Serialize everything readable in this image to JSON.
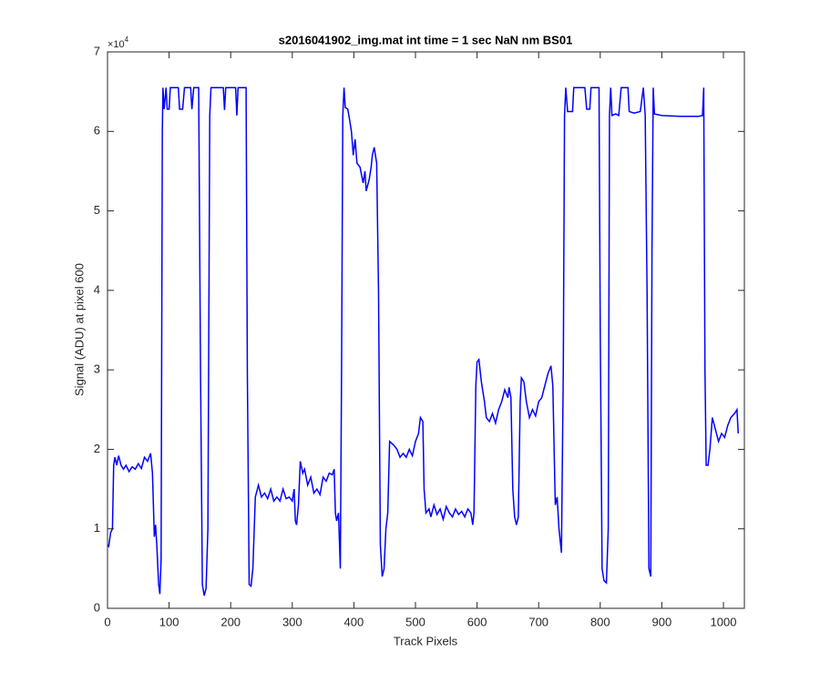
{
  "chart_data": {
    "type": "line",
    "title": "s2016041902_img.mat int time = 1 sec  NaN nm BS01",
    "x_label": "Track Pixels",
    "y_label": "Signal (ADU) at pixel 600",
    "y_multiplier": {
      "base": "×10",
      "exponent": "4"
    },
    "color": "#0000ff",
    "xlim": [
      0,
      1034
    ],
    "ylim": [
      0,
      70000
    ],
    "xticks": [
      0,
      100,
      200,
      300,
      400,
      500,
      600,
      700,
      800,
      900,
      1000
    ],
    "yticks": [
      0,
      {
        "value": 10000,
        "label": "1"
      },
      {
        "value": 20000,
        "label": "2"
      },
      {
        "value": 30000,
        "label": "3"
      },
      {
        "value": 40000,
        "label": "4"
      },
      {
        "value": 50000,
        "label": "5"
      },
      {
        "value": 60000,
        "label": "6"
      },
      {
        "value": 70000,
        "label": "7"
      }
    ],
    "x": [
      0,
      2,
      5,
      8,
      10,
      12,
      15,
      18,
      22,
      26,
      30,
      35,
      40,
      45,
      50,
      55,
      60,
      65,
      70,
      73,
      76,
      78,
      80,
      83,
      85,
      87,
      89,
      90,
      92,
      95,
      97,
      100,
      102,
      115,
      117,
      122,
      125,
      135,
      137,
      140,
      148,
      151,
      154,
      157,
      160,
      163,
      166,
      168,
      188,
      190,
      192,
      208,
      210,
      212,
      225,
      227,
      230,
      233,
      236,
      240,
      245,
      250,
      255,
      260,
      265,
      270,
      275,
      280,
      285,
      290,
      295,
      300,
      303,
      305,
      307,
      310,
      313,
      317,
      320,
      325,
      330,
      335,
      340,
      345,
      350,
      355,
      360,
      365,
      368,
      370,
      372,
      375,
      378,
      380,
      382,
      384,
      386,
      390,
      393,
      396,
      399,
      402,
      405,
      410,
      415,
      418,
      420,
      425,
      428,
      430,
      433,
      437,
      440,
      443,
      446,
      449,
      452,
      455,
      458,
      465,
      470,
      475,
      480,
      485,
      490,
      495,
      500,
      505,
      508,
      512,
      514,
      517,
      522,
      525,
      530,
      535,
      540,
      545,
      550,
      555,
      560,
      565,
      570,
      575,
      580,
      585,
      590,
      593,
      595,
      598,
      600,
      603,
      607,
      612,
      615,
      620,
      625,
      630,
      635,
      640,
      645,
      650,
      652,
      655,
      658,
      661,
      664,
      667,
      670,
      672,
      676,
      680,
      685,
      690,
      695,
      700,
      705,
      710,
      715,
      720,
      723,
      727,
      730,
      733,
      737,
      740,
      742,
      744,
      747,
      755,
      757,
      775,
      778,
      783,
      785,
      798,
      800,
      803,
      806,
      810,
      813,
      815,
      817,
      819,
      825,
      830,
      834,
      845,
      847,
      855,
      865,
      870,
      873,
      876,
      879,
      882,
      884,
      886,
      888,
      900,
      930,
      960,
      966,
      968,
      970,
      972,
      975,
      978,
      982,
      987,
      992,
      997,
      1002,
      1007,
      1012,
      1018,
      1022,
      1024
    ],
    "values": [
      8000,
      7800,
      9500,
      10000,
      18000,
      19000,
      18000,
      19200,
      18000,
      17500,
      18000,
      17200,
      17800,
      17500,
      18200,
      17600,
      19000,
      18500,
      19500,
      17000,
      9000,
      10500,
      8000,
      3000,
      1800,
      6000,
      60000,
      65500,
      62800,
      65500,
      62800,
      62800,
      65500,
      65500,
      62800,
      62800,
      65500,
      65500,
      62800,
      65500,
      65500,
      30000,
      3000,
      1600,
      2500,
      10000,
      62000,
      65500,
      65500,
      62700,
      65500,
      65500,
      62000,
      65500,
      65500,
      30000,
      3000,
      2800,
      5000,
      14000,
      15500,
      14000,
      14500,
      13800,
      15000,
      13500,
      14000,
      13500,
      15000,
      13800,
      14000,
      13500,
      15000,
      11000,
      10500,
      13000,
      18500,
      17000,
      17500,
      15500,
      16500,
      14500,
      15000,
      14300,
      16500,
      16000,
      17000,
      16800,
      17500,
      12000,
      11000,
      12000,
      5000,
      30000,
      62000,
      65500,
      63000,
      62800,
      61500,
      60000,
      57000,
      59000,
      56000,
      55500,
      53500,
      55000,
      52500,
      54000,
      55500,
      57000,
      58000,
      56000,
      40000,
      8000,
      4000,
      5000,
      10000,
      12000,
      21000,
      20500,
      20000,
      19000,
      19500,
      19000,
      20000,
      19200,
      21000,
      22000,
      24000,
      23500,
      15000,
      12000,
      12500,
      11500,
      13000,
      11800,
      12500,
      11200,
      12800,
      12000,
      11500,
      12500,
      11800,
      12200,
      11500,
      12500,
      12000,
      10500,
      12000,
      28000,
      31000,
      31300,
      28500,
      26000,
      24000,
      23500,
      24500,
      23300,
      25000,
      26000,
      27500,
      26500,
      27800,
      26500,
      15000,
      11500,
      10500,
      11500,
      26000,
      29000,
      28500,
      26000,
      24000,
      25000,
      24200,
      26000,
      26500,
      28000,
      29500,
      30500,
      28000,
      13000,
      14000,
      10000,
      7000,
      30000,
      62000,
      65500,
      62500,
      62500,
      65500,
      65500,
      62800,
      62800,
      65500,
      65500,
      35000,
      5000,
      3500,
      3200,
      10000,
      62000,
      65500,
      62000,
      62200,
      62000,
      65500,
      65500,
      62500,
      62300,
      62500,
      65500,
      62000,
      40000,
      5000,
      4000,
      45000,
      65500,
      62200,
      62000,
      61900,
      61900,
      62000,
      65500,
      30000,
      18000,
      18000,
      20000,
      24000,
      22500,
      21000,
      22000,
      21500,
      23000,
      24000,
      24500,
      25000,
      22000
    ]
  }
}
